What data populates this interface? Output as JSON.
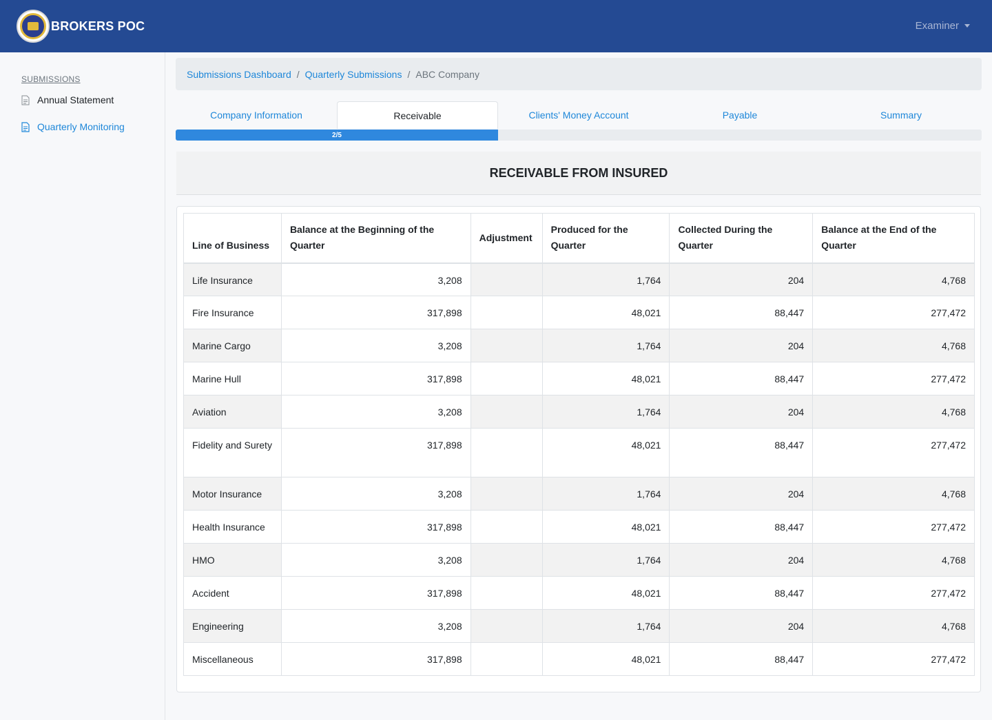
{
  "app": {
    "title": "BROKERS POC"
  },
  "user_menu": {
    "label": "Examiner"
  },
  "sidebar": {
    "heading": "SUBMISSIONS",
    "items": [
      {
        "label": "Annual Statement",
        "active": false
      },
      {
        "label": "Quarterly Monitoring",
        "active": true
      }
    ]
  },
  "breadcrumb": {
    "items": [
      "Submissions Dashboard",
      "Quarterly Submissions"
    ],
    "current": "ABC Company",
    "separator": "/"
  },
  "tabs": [
    "Company Information",
    "Receivable",
    "Clients' Money Account",
    "Payable",
    "Summary"
  ],
  "active_tab": 1,
  "progress": {
    "label": "2/5",
    "value": 0.4
  },
  "section": {
    "title": "RECEIVABLE FROM INSURED"
  },
  "table": {
    "headers": [
      "Line of Business",
      "Balance at the Beginning of the Quarter",
      "Adjustment",
      "Produced for the Quarter",
      "Collected During the Quarter",
      "Balance at the End of the Quarter"
    ],
    "rows": [
      [
        "Life Insurance",
        "3,208",
        "",
        "1,764",
        "204",
        "4,768"
      ],
      [
        "Fire Insurance",
        "317,898",
        "",
        "48,021",
        "88,447",
        "277,472"
      ],
      [
        "Marine Cargo",
        "3,208",
        "",
        "1,764",
        "204",
        "4,768"
      ],
      [
        "Marine Hull",
        "317,898",
        "",
        "48,021",
        "88,447",
        "277,472"
      ],
      [
        "Aviation",
        "3,208",
        "",
        "1,764",
        "204",
        "4,768"
      ],
      [
        "Fidelity and Surety",
        "317,898",
        "",
        "48,021",
        "88,447",
        "277,472"
      ],
      [
        "Motor Insurance",
        "3,208",
        "",
        "1,764",
        "204",
        "4,768"
      ],
      [
        "Health Insurance",
        "317,898",
        "",
        "48,021",
        "88,447",
        "277,472"
      ],
      [
        "HMO",
        "3,208",
        "",
        "1,764",
        "204",
        "4,768"
      ],
      [
        "Accident",
        "317,898",
        "",
        "48,021",
        "88,447",
        "277,472"
      ],
      [
        "Engineering",
        "3,208",
        "",
        "1,764",
        "204",
        "4,768"
      ],
      [
        "Miscellaneous",
        "317,898",
        "",
        "48,021",
        "88,447",
        "277,472"
      ]
    ]
  },
  "colors": {
    "navbar": "#244a93",
    "link": "#1e87d9",
    "progress": "#2f88de"
  }
}
